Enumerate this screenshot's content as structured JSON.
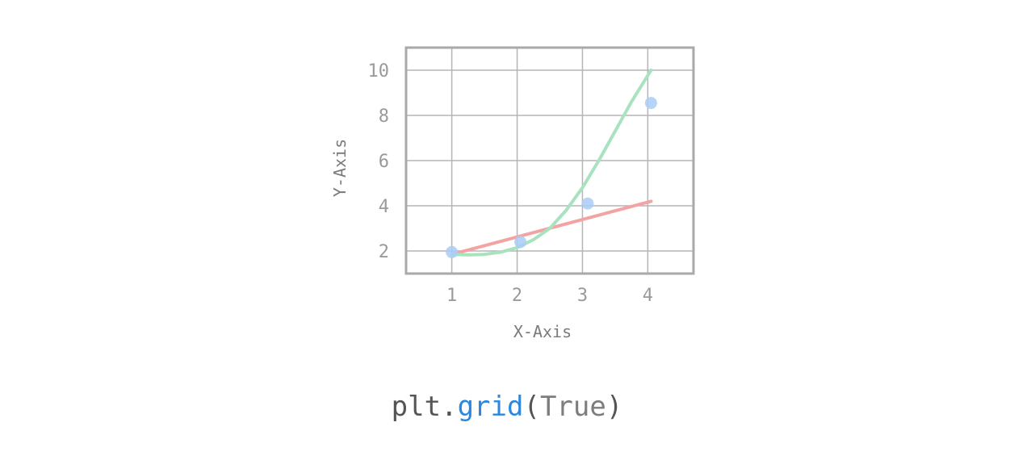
{
  "chart_data": {
    "type": "line",
    "title": "",
    "xlabel": "X-Axis",
    "ylabel": "Y-Axis",
    "xlim": [
      0.3,
      4.7
    ],
    "ylim": [
      1,
      11
    ],
    "xticks": [
      1,
      2,
      3,
      4
    ],
    "yticks": [
      2,
      4,
      6,
      8,
      10
    ],
    "grid": true,
    "scatter": {
      "x": [
        1,
        2.05,
        3.08,
        4.05
      ],
      "y": [
        1.95,
        2.4,
        4.1,
        8.55
      ],
      "color": "#a9cdf7"
    },
    "linear_fit": {
      "x": [
        1,
        4.05
      ],
      "y": [
        1.85,
        4.2
      ],
      "color": "#f4a3a3"
    },
    "curve_fit": {
      "x": [
        1.0,
        1.25,
        1.5,
        1.75,
        2.0,
        2.25,
        2.5,
        2.75,
        3.0,
        3.25,
        3.5,
        3.75,
        4.05
      ],
      "y": [
        1.85,
        1.83,
        1.85,
        1.95,
        2.15,
        2.5,
        3.0,
        3.8,
        4.8,
        6.0,
        7.3,
        8.6,
        10.0
      ],
      "color": "#a8e2bf"
    },
    "colors": {
      "grid": "#b5b5b5",
      "frame": "#a9a9a9"
    }
  },
  "code": {
    "prefix": "plt.",
    "function": "grid",
    "open": "(",
    "argument": "True",
    "close": ")"
  }
}
